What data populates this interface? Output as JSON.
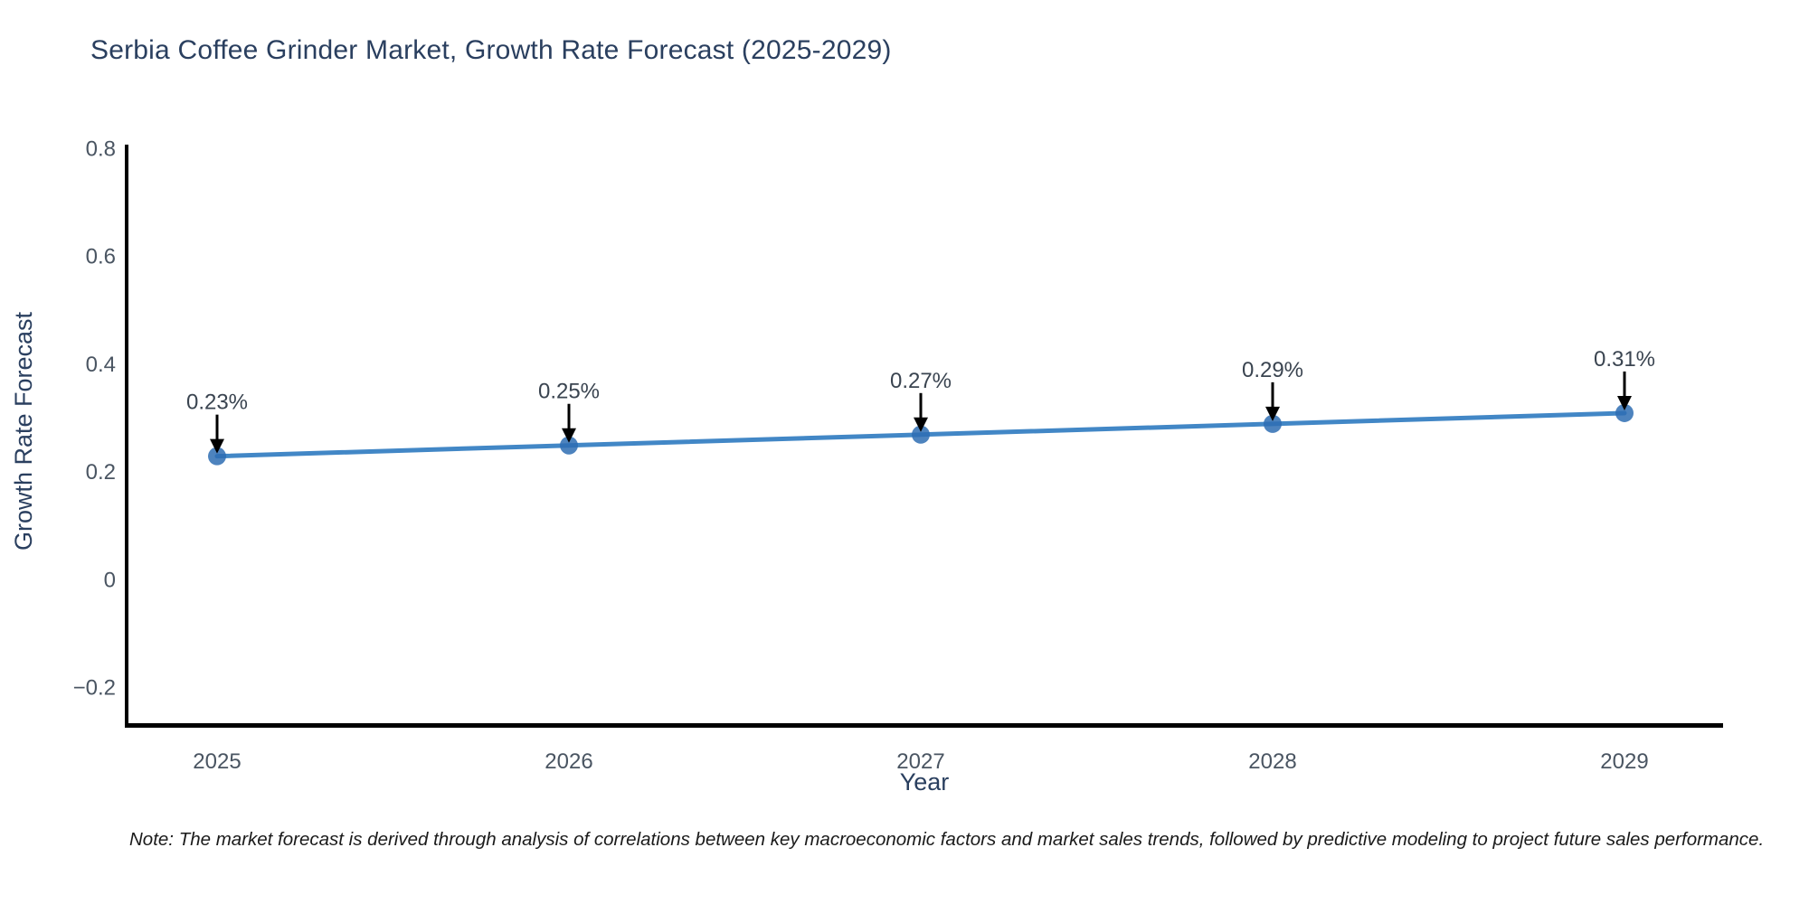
{
  "chart_data": {
    "type": "line",
    "title": "Serbia Coffee Grinder Market, Growth Rate Forecast (2025-2029)",
    "xlabel": "Year",
    "ylabel": "Growth Rate Forecast",
    "x": [
      2025,
      2026,
      2027,
      2028,
      2029
    ],
    "values": [
      0.23,
      0.25,
      0.27,
      0.29,
      0.31
    ],
    "point_labels": [
      "0.23%",
      "0.25%",
      "0.27%",
      "0.29%",
      "0.31%"
    ],
    "yticks": [
      -0.2,
      0,
      0.2,
      0.4,
      0.6,
      0.8
    ],
    "ytick_labels": [
      "−0.2",
      "0",
      "0.2",
      "0.4",
      "0.6",
      "0.8"
    ],
    "ylim": [
      -0.267,
      0.808
    ],
    "grid": false,
    "legend": false,
    "annotation_style": "value label with downward black arrow above each marker",
    "colors": {
      "line": "#4287c6",
      "marker": "#2e6db3",
      "arrow": "#000000",
      "axis": "#000000",
      "tick_label": "#4a5562",
      "title": "#2a3f5f",
      "point_label": "#3a4450"
    }
  },
  "footnote": {
    "text": "Note: The market forecast is derived through analysis of correlations between key macroeconomic factors and market sales trends, followed by predictive modeling to project future sales performance."
  }
}
